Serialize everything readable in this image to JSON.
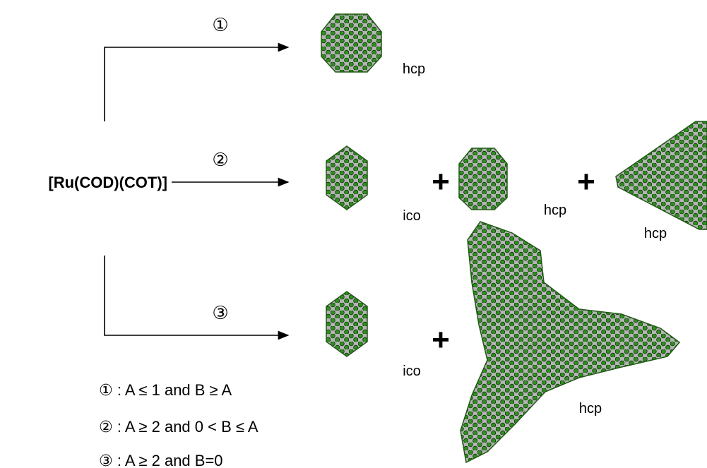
{
  "reactant": "[Ru(COD)(COT)]",
  "plus": "+",
  "routes": [
    {
      "step": "①",
      "products": [
        {
          "label": "hcp"
        }
      ]
    },
    {
      "step": "②",
      "products": [
        {
          "label": "ico"
        },
        {
          "label": "hcp"
        },
        {
          "label": "hcp"
        }
      ]
    },
    {
      "step": "③",
      "products": [
        {
          "label": "ico"
        },
        {
          "label": "hcp"
        }
      ]
    }
  ],
  "conditions": [
    "① : A ≤ 1 and B ≥ A",
    "② : A ≥ 2 and 0 < B ≤ A",
    "③ : A ≥ 2 and B=0"
  ]
}
